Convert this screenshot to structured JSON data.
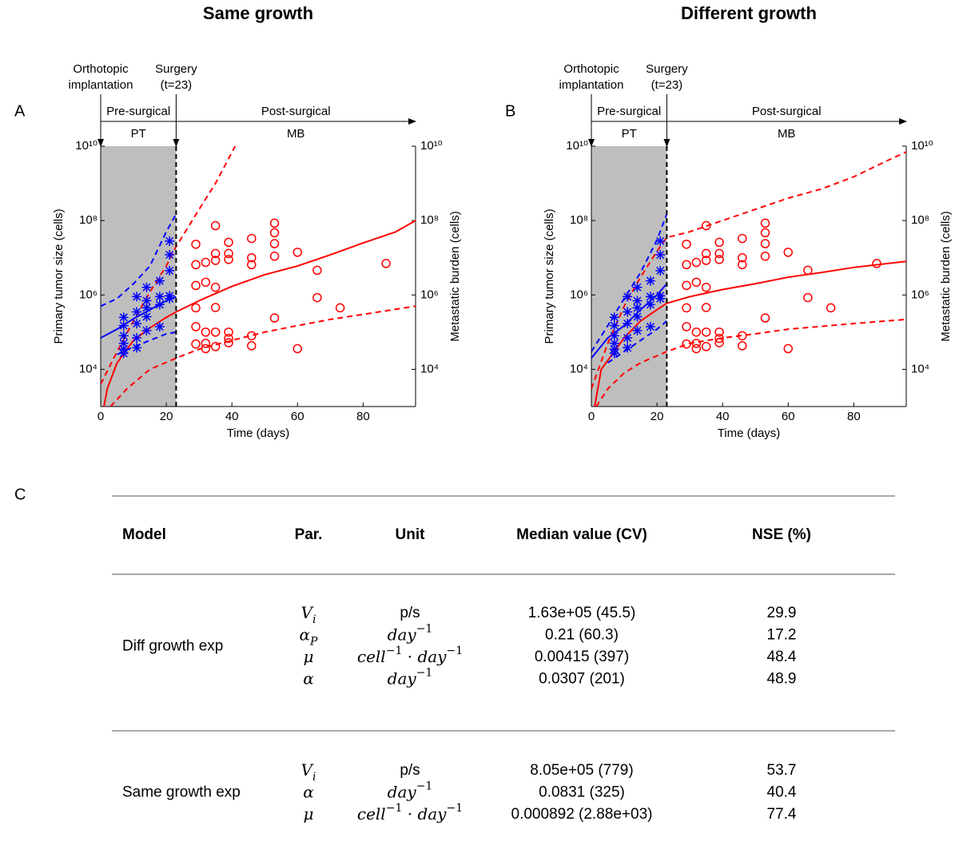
{
  "chart_data": [
    {
      "type": "line",
      "panel": "A",
      "title": "Same growth",
      "xlabel": "Time (days)",
      "ylabel": "Primary tumor size (cells)",
      "y2label": "Metastatic burden (cells)",
      "xlim": [
        0,
        96
      ],
      "xticks": [
        0,
        20,
        40,
        60,
        80
      ],
      "yscale": "log",
      "ylim": [
        1000,
        10000000000
      ],
      "yticks": [
        {
          "value": 10000,
          "label": "10⁴"
        },
        {
          "value": 1000000,
          "label": "10⁶"
        },
        {
          "value": 100000000,
          "label": "10⁸"
        },
        {
          "value": 10000000000,
          "label": "10¹⁰"
        }
      ],
      "y2lim": [
        1000,
        10000000000
      ],
      "y2ticks": [
        {
          "value": 10000,
          "label": "10⁴"
        },
        {
          "value": 1000000,
          "label": "10⁶"
        },
        {
          "value": 100000000,
          "label": "10⁸"
        },
        {
          "value": 10000000000,
          "label": "10¹⁰"
        }
      ],
      "surgery_day": 23,
      "shade_color": "#bebebe",
      "annotations": {
        "implantation": [
          "Orthotopic",
          "implantation"
        ],
        "surgery": [
          "Surgery",
          "(t=23)"
        ],
        "pre": "Pre-surgical",
        "post": "Post-surgical",
        "pt": "PT",
        "mb": "MB"
      },
      "series": [
        {
          "color": "#0000ff",
          "style": "solid",
          "x": [
            0,
            5,
            10,
            15,
            20,
            23
          ],
          "values": [
            70000,
            120000,
            230000,
            400000,
            700000,
            900000
          ]
        },
        {
          "color": "#0000ff",
          "style": "dashed",
          "x": [
            0,
            5,
            10,
            15,
            20,
            23
          ],
          "values": [
            500000,
            800000,
            2000000,
            6000000,
            50000000,
            150000000
          ]
        },
        {
          "color": "#0000ff",
          "style": "dashed",
          "x": [
            5,
            10,
            15,
            20,
            23
          ],
          "values": [
            25000,
            40000,
            60000,
            90000,
            100000
          ]
        },
        {
          "color": "#ff0000",
          "style": "solid",
          "x": [
            1,
            2,
            5,
            10,
            15,
            20,
            23,
            30,
            40,
            50,
            60,
            70,
            80,
            90,
            96
          ],
          "values": [
            1000,
            3000,
            15000,
            60000,
            130000,
            250000,
            350000,
            700000,
            1700000,
            3500000,
            6000000,
            12000000,
            25000000,
            50000000,
            100000000
          ]
        },
        {
          "color": "#ff0000",
          "style": "dashed",
          "x": [
            0,
            5,
            10,
            15,
            20,
            23,
            30,
            35,
            41
          ],
          "values": [
            4000,
            30000,
            200000,
            1200000,
            6000000,
            20000000,
            200000000,
            1000000000,
            10000000000
          ]
        },
        {
          "color": "#ff0000",
          "style": "dashed",
          "x": [
            3,
            8,
            15,
            23,
            30,
            40,
            50,
            60,
            70,
            80,
            96
          ],
          "values": [
            1000,
            3000,
            10000,
            20000,
            35000,
            60000,
            100000,
            150000,
            220000,
            300000,
            500000
          ]
        },
        {
          "color": "#0000ff",
          "style": "none",
          "marker": "asterisk",
          "x": [
            7,
            7,
            7,
            7,
            7,
            7,
            11,
            11,
            11,
            11,
            11,
            14,
            14,
            14,
            14,
            14,
            18,
            18,
            18,
            18,
            21,
            21,
            21,
            21,
            21
          ],
          "values": [
            250000,
            150000,
            80000,
            50000,
            35000,
            27000,
            900000,
            350000,
            170000,
            70000,
            38000,
            1600000,
            700000,
            450000,
            260000,
            110000,
            2400000,
            900000,
            550000,
            140000,
            28000000,
            12000000,
            4500000,
            950000,
            800000
          ]
        },
        {
          "color": "#ff0000",
          "style": "none",
          "marker": "circle",
          "x": [
            29,
            29,
            29,
            29,
            29,
            29,
            32,
            32,
            32,
            32,
            32,
            35,
            35,
            35,
            35,
            35,
            35,
            35,
            39,
            39,
            39,
            39,
            39,
            39,
            46,
            46,
            46,
            46,
            46,
            53,
            53,
            53,
            53,
            53,
            60,
            60,
            66,
            66,
            73,
            87
          ],
          "values": [
            23000000,
            6500000,
            1800000,
            450000,
            140000,
            48000,
            7500000,
            2200000,
            100000,
            50000,
            36000,
            73000000,
            13000000,
            8500000,
            1600000,
            460000,
            100000,
            41000,
            26000000,
            13000000,
            9000000,
            100000,
            68000,
            52000,
            33000000,
            10000000,
            6500000,
            80000,
            43000,
            85000000,
            47000000,
            24000000,
            11000000,
            240000,
            14000000,
            36000,
            4600000,
            850000,
            450000,
            7000000
          ]
        }
      ]
    },
    {
      "type": "line",
      "panel": "B",
      "title": "Different growth",
      "xlabel": "Time (days)",
      "ylabel": "Primary tumor size (cells)",
      "y2label": "Metastatic burden (cells)",
      "xlim": [
        0,
        96
      ],
      "xticks": [
        0,
        20,
        40,
        60,
        80
      ],
      "yscale": "log",
      "ylim": [
        1000,
        10000000000
      ],
      "yticks": [
        {
          "value": 10000,
          "label": "10⁴"
        },
        {
          "value": 1000000,
          "label": "10⁶"
        },
        {
          "value": 100000000,
          "label": "10⁸"
        },
        {
          "value": 10000000000,
          "label": "10¹⁰"
        }
      ],
      "y2lim": [
        1000,
        10000000000
      ],
      "y2ticks": [
        {
          "value": 10000,
          "label": "10⁴"
        },
        {
          "value": 1000000,
          "label": "10⁶"
        },
        {
          "value": 100000000,
          "label": "10⁸"
        },
        {
          "value": 10000000000,
          "label": "10¹⁰"
        }
      ],
      "surgery_day": 23,
      "shade_color": "#bebebe",
      "annotations": {
        "implantation": [
          "Orthotopic",
          "implantation"
        ],
        "surgery": [
          "Surgery",
          "(t=23)"
        ],
        "pre": "Pre-surgical",
        "post": "Post-surgical",
        "pt": "PT",
        "mb": "MB"
      },
      "series": [
        {
          "color": "#0000ff",
          "style": "solid",
          "x": [
            0,
            5,
            10,
            15,
            20,
            23
          ],
          "values": [
            20000,
            70000,
            150000,
            400000,
            1000000,
            2000000
          ]
        },
        {
          "color": "#0000ff",
          "style": "dashed",
          "x": [
            0,
            5,
            10,
            15,
            20,
            23
          ],
          "values": [
            30000,
            150000,
            800000,
            4000000,
            30000000,
            150000000
          ]
        },
        {
          "color": "#0000ff",
          "style": "dashed",
          "x": [
            5,
            10,
            15,
            20,
            23
          ],
          "values": [
            15000,
            30000,
            60000,
            120000,
            200000
          ]
        },
        {
          "color": "#ff0000",
          "style": "solid",
          "x": [
            1,
            3,
            10,
            15,
            20,
            23,
            30,
            40,
            50,
            60,
            70,
            80,
            96
          ],
          "values": [
            1000,
            10000,
            70000,
            200000,
            400000,
            600000,
            900000,
            1400000,
            2000000,
            3000000,
            4000000,
            5500000,
            8000000
          ]
        },
        {
          "color": "#ff0000",
          "style": "dashed",
          "x": [
            0,
            5,
            10,
            15,
            20,
            23,
            30,
            40,
            50,
            60,
            70,
            80,
            90,
            96
          ],
          "values": [
            3000,
            50000,
            500000,
            3000000,
            15000000,
            35000000,
            50000000,
            100000000,
            200000000,
            400000000,
            700000000,
            1500000000,
            4000000000,
            7000000000
          ]
        },
        {
          "color": "#ff0000",
          "style": "dashed",
          "x": [
            1.5,
            5,
            10,
            15,
            23,
            30,
            40,
            50,
            60,
            80,
            96
          ],
          "values": [
            1000,
            3000,
            8000,
            15000,
            30000,
            50000,
            70000,
            90000,
            120000,
            170000,
            220000
          ]
        },
        {
          "color": "#0000ff",
          "style": "none",
          "marker": "asterisk",
          "x": [
            7,
            7,
            7,
            7,
            7,
            7,
            11,
            11,
            11,
            11,
            11,
            14,
            14,
            14,
            14,
            14,
            18,
            18,
            18,
            18,
            21,
            21,
            21,
            21,
            21
          ],
          "values": [
            250000,
            150000,
            80000,
            50000,
            35000,
            27000,
            900000,
            350000,
            170000,
            70000,
            38000,
            1600000,
            700000,
            450000,
            260000,
            110000,
            2400000,
            900000,
            550000,
            140000,
            28000000,
            12000000,
            4500000,
            950000,
            800000
          ]
        },
        {
          "color": "#ff0000",
          "style": "none",
          "marker": "circle",
          "x": [
            29,
            29,
            29,
            29,
            29,
            29,
            32,
            32,
            32,
            32,
            32,
            35,
            35,
            35,
            35,
            35,
            35,
            35,
            39,
            39,
            39,
            39,
            39,
            39,
            46,
            46,
            46,
            46,
            46,
            53,
            53,
            53,
            53,
            53,
            60,
            60,
            66,
            66,
            73,
            87
          ],
          "values": [
            23000000,
            6500000,
            1800000,
            450000,
            140000,
            48000,
            7500000,
            2200000,
            100000,
            50000,
            36000,
            73000000,
            13000000,
            8500000,
            1600000,
            460000,
            100000,
            41000,
            26000000,
            13000000,
            9000000,
            100000,
            68000,
            52000,
            33000000,
            10000000,
            6500000,
            80000,
            43000,
            85000000,
            47000000,
            24000000,
            11000000,
            240000,
            14000000,
            36000,
            4600000,
            850000,
            450000,
            7000000
          ]
        }
      ]
    }
  ],
  "table": {
    "label": "C",
    "columns": [
      "Model",
      "Par.",
      "Unit",
      "Median value (CV)",
      "NSE (%)"
    ],
    "groups": [
      {
        "model": "Diff growth exp",
        "rows": [
          {
            "param": {
              "base": "V",
              "sub": "i"
            },
            "unit": "p/s",
            "median_cv": "1.63e+05 (45.5)",
            "nse": 29.9
          },
          {
            "param": {
              "base": "α",
              "sub": "P"
            },
            "unit": [
              {
                "base": "day",
                "sup": "−1"
              }
            ],
            "median_cv": "0.21 (60.3)",
            "nse": 17.2
          },
          {
            "param": {
              "base": "μ"
            },
            "unit": [
              {
                "base": "cell",
                "sup": "−1"
              },
              {
                "base": " · "
              },
              {
                "base": "day",
                "sup": "−1"
              }
            ],
            "median_cv": "0.00415 (397)",
            "nse": 48.4
          },
          {
            "param": {
              "base": "α"
            },
            "unit": [
              {
                "base": "day",
                "sup": "−1"
              }
            ],
            "median_cv": "0.0307 (201)",
            "nse": 48.9
          }
        ]
      },
      {
        "model": "Same growth exp",
        "rows": [
          {
            "param": {
              "base": "V",
              "sub": "i"
            },
            "unit": "p/s",
            "median_cv": "8.05e+05 (779)",
            "nse": 53.7
          },
          {
            "param": {
              "base": "α"
            },
            "unit": [
              {
                "base": "day",
                "sup": "−1"
              }
            ],
            "median_cv": "0.0831 (325)",
            "nse": 40.4
          },
          {
            "param": {
              "base": "μ"
            },
            "unit": [
              {
                "base": "cell",
                "sup": "−1"
              },
              {
                "base": " · "
              },
              {
                "base": "day",
                "sup": "−1"
              }
            ],
            "median_cv": "0.000892 (2.88e+03)",
            "nse": 77.4
          }
        ]
      }
    ]
  }
}
